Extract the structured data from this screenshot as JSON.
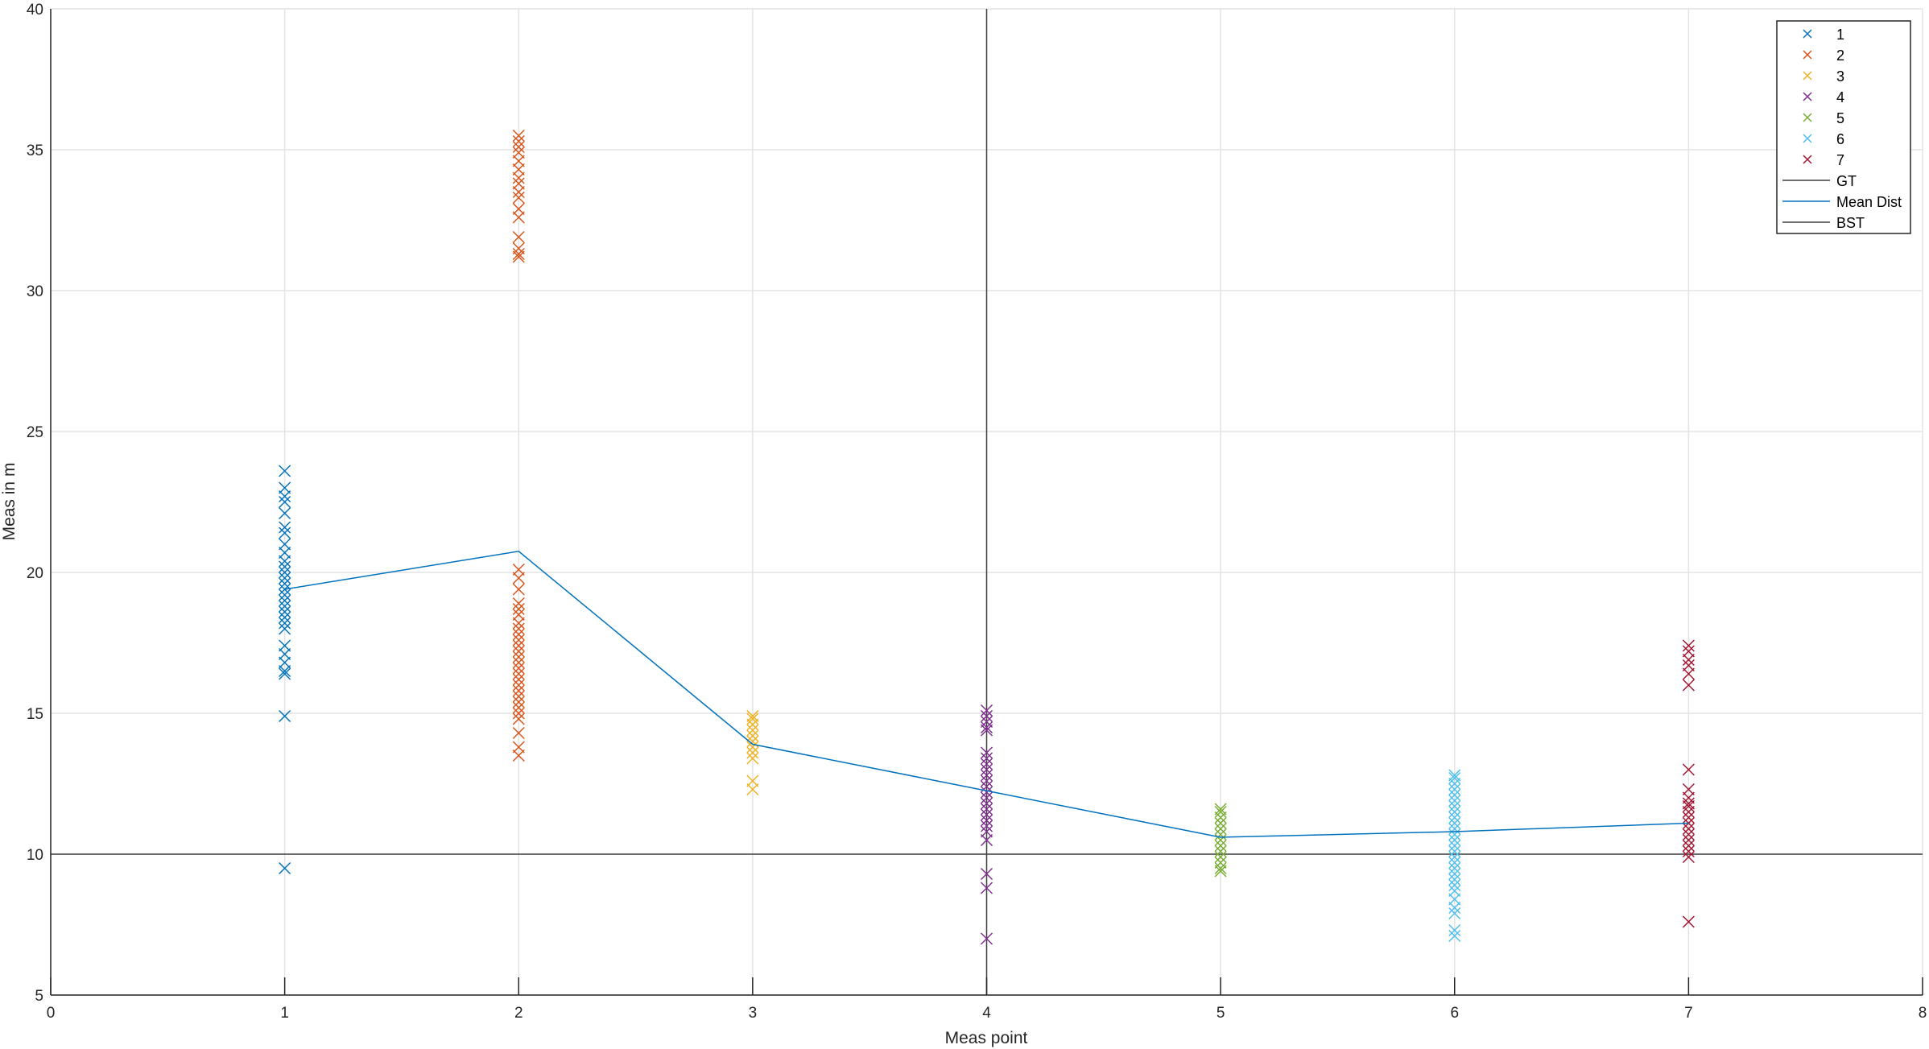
{
  "chart_data": {
    "type": "scatter",
    "xlabel": "Meas point",
    "ylabel": "Meas in m",
    "xlim": [
      0,
      8
    ],
    "ylim": [
      5,
      40
    ],
    "xticks": [
      "0",
      "1",
      "2",
      "3",
      "4",
      "5",
      "6",
      "7",
      "8"
    ],
    "yticks": [
      "5",
      "10",
      "15",
      "20",
      "25",
      "30",
      "35",
      "40"
    ],
    "grid": true,
    "legend_position": "top-right",
    "series": [
      {
        "name": "1",
        "x": 1,
        "color": "#0072BD",
        "marker": "x",
        "values": [
          18.0,
          18.2,
          18.4,
          18.6,
          18.8,
          19.0,
          19.2,
          19.4,
          19.6,
          19.8,
          20.0,
          20.2,
          20.4,
          20.7,
          21.0,
          21.4,
          21.6,
          22.1,
          22.5,
          22.7,
          23.0,
          23.6,
          17.4,
          17.1,
          16.8,
          16.5,
          16.4,
          14.9,
          9.5
        ]
      },
      {
        "name": "2",
        "x": 2,
        "color": "#D95319",
        "marker": "x",
        "values": [
          35.5,
          35.3,
          35.1,
          34.9,
          34.6,
          34.3,
          34.0,
          33.8,
          33.5,
          33.3,
          32.9,
          32.6,
          31.9,
          31.5,
          31.3,
          31.2,
          20.1,
          19.8,
          19.4,
          18.9,
          18.7,
          18.5,
          18.2,
          18.0,
          17.8,
          17.6,
          17.4,
          17.2,
          17.0,
          16.8,
          16.6,
          16.4,
          16.2,
          16.0,
          15.8,
          15.6,
          15.4,
          15.2,
          15.0,
          14.8,
          14.3,
          13.8,
          13.5
        ]
      },
      {
        "name": "3",
        "x": 3,
        "color": "#EDB120",
        "marker": "x",
        "values": [
          14.9,
          14.8,
          14.6,
          14.4,
          14.2,
          14.0,
          13.8,
          13.6,
          13.4,
          12.6,
          12.3
        ]
      },
      {
        "name": "4",
        "x": 4,
        "color": "#7E2F8E",
        "marker": "x",
        "values": [
          15.1,
          14.9,
          14.7,
          14.5,
          14.4,
          13.6,
          13.4,
          13.2,
          13.0,
          12.8,
          12.6,
          12.4,
          12.2,
          12.0,
          11.8,
          11.6,
          11.4,
          11.2,
          11.0,
          10.8,
          10.5,
          9.3,
          8.8,
          7.0
        ]
      },
      {
        "name": "5",
        "x": 5,
        "color": "#77AC30",
        "marker": "x",
        "values": [
          11.6,
          11.5,
          11.3,
          11.1,
          10.9,
          10.7,
          10.5,
          10.3,
          10.1,
          9.9,
          9.7,
          9.5,
          9.4
        ]
      },
      {
        "name": "6",
        "x": 6,
        "color": "#4DBEEE",
        "marker": "x",
        "values": [
          12.8,
          12.7,
          12.5,
          12.3,
          12.1,
          11.9,
          11.7,
          11.5,
          11.3,
          11.1,
          10.9,
          10.7,
          10.5,
          10.3,
          10.1,
          9.9,
          9.7,
          9.5,
          9.3,
          9.1,
          8.9,
          8.7,
          8.4,
          8.1,
          7.9,
          7.3,
          7.1
        ]
      },
      {
        "name": "7",
        "x": 7,
        "color": "#A2142F",
        "marker": "x",
        "values": [
          17.4,
          17.2,
          16.9,
          16.7,
          16.4,
          16.0,
          13.0,
          12.3,
          12.0,
          11.8,
          11.7,
          11.5,
          11.3,
          11.1,
          10.9,
          10.7,
          10.5,
          10.3,
          10.1,
          9.9,
          7.6
        ]
      }
    ],
    "lines": [
      {
        "name": "GT",
        "color": "#404040",
        "orientation": "horizontal",
        "y": 10
      },
      {
        "name": "Mean Dist",
        "color": "#0072BD",
        "x": [
          1,
          2,
          3,
          4,
          5,
          6,
          7
        ],
        "y": [
          19.4,
          20.75,
          13.9,
          12.25,
          10.6,
          10.8,
          11.1
        ]
      },
      {
        "name": "BST",
        "color": "#404040",
        "orientation": "vertical",
        "x": 4
      }
    ]
  }
}
